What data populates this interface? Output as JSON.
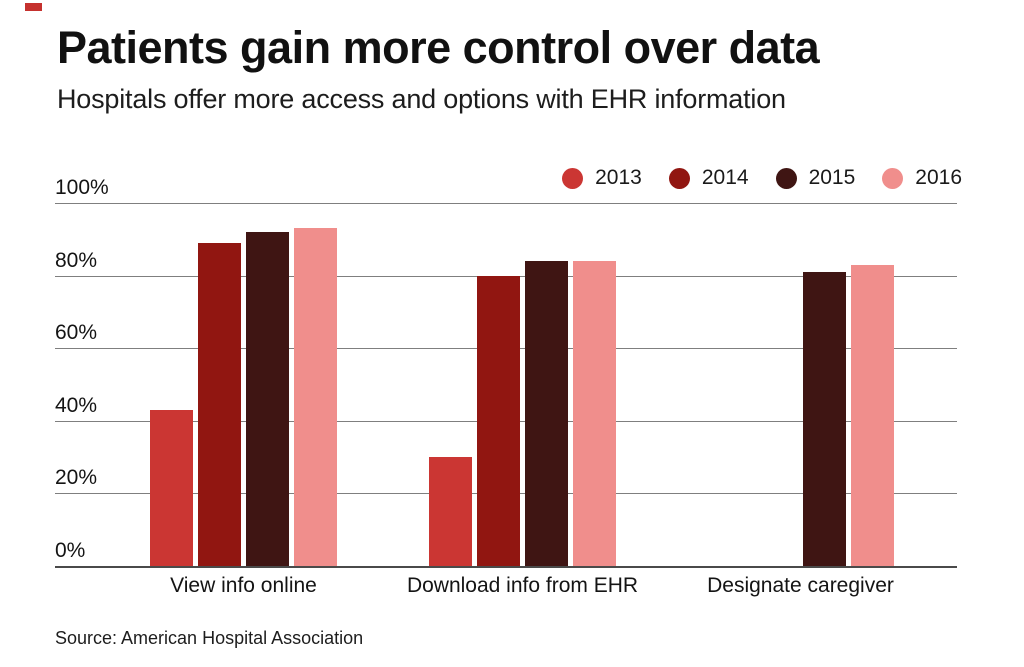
{
  "page": {
    "accent_dash_color": "#c5312e"
  },
  "header": {
    "title": "Patients gain more control over data",
    "subtitle": "Hospitals offer more access and options with EHR information"
  },
  "legend": [
    {
      "label": "2013",
      "color": "#cb3633"
    },
    {
      "label": "2014",
      "color": "#911611"
    },
    {
      "label": "2015",
      "color": "#3f1513"
    },
    {
      "label": "2016",
      "color": "#f08e8c"
    }
  ],
  "chart_data": {
    "type": "bar",
    "categories": [
      "View info online",
      "Download info from EHR",
      "Designate caregiver"
    ],
    "series": [
      {
        "name": "2013",
        "color": "#cb3633",
        "values": [
          43,
          30,
          null
        ]
      },
      {
        "name": "2014",
        "color": "#911611",
        "values": [
          89,
          80,
          null
        ]
      },
      {
        "name": "2015",
        "color": "#3f1513",
        "values": [
          92,
          84,
          81
        ]
      },
      {
        "name": "2016",
        "color": "#f08e8c",
        "values": [
          93,
          84,
          83
        ]
      }
    ],
    "title": "Patients gain more control over data",
    "subtitle": "Hospitals offer more access and options with EHR information",
    "xlabel": "",
    "ylabel": "",
    "ylim": [
      0,
      100
    ],
    "yticks": [
      {
        "value": 0,
        "label": "0%"
      },
      {
        "value": 20,
        "label": "20%"
      },
      {
        "value": 40,
        "label": "40%"
      },
      {
        "value": 60,
        "label": "60%"
      },
      {
        "value": 80,
        "label": "80%"
      },
      {
        "value": 100,
        "label": "100%"
      }
    ],
    "grid": true,
    "legend_position": "top-right"
  },
  "source": "Source: American Hospital Association"
}
